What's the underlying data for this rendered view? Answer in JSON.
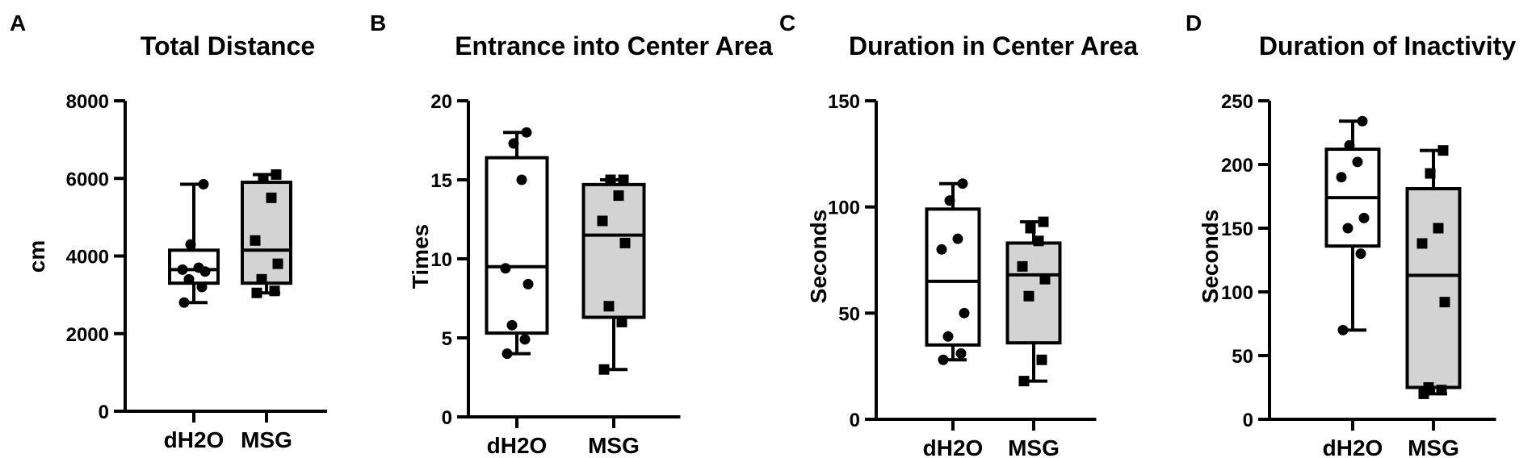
{
  "chart_data": [
    {
      "type": "box",
      "panel": "A",
      "title": "Total Distance",
      "ylabel": "cm",
      "ylim": [
        0,
        8000
      ],
      "yticks": [
        0,
        2000,
        4000,
        6000,
        8000
      ],
      "categories": [
        "dH2O",
        "MSG"
      ],
      "groups": [
        {
          "name": "dH2O",
          "marker": "circle",
          "fill": "#ffffff",
          "min": 2800,
          "q1": 3300,
          "median": 3650,
          "q3": 4150,
          "max": 5850,
          "points": [
            2800,
            3200,
            3400,
            3600,
            3650,
            3700,
            4300,
            5850
          ]
        },
        {
          "name": "MSG",
          "marker": "square",
          "fill": "#d3d3d3",
          "min": 3050,
          "q1": 3300,
          "median": 4150,
          "q3": 5900,
          "max": 6100,
          "points": [
            3050,
            3100,
            3400,
            3800,
            4400,
            5500,
            6000,
            6100
          ]
        }
      ]
    },
    {
      "type": "box",
      "panel": "B",
      "title": "Entrance into Center Area",
      "ylabel": "Times",
      "ylim": [
        0,
        20
      ],
      "yticks": [
        0,
        5,
        10,
        15,
        20
      ],
      "categories": [
        "dH2O",
        "MSG"
      ],
      "groups": [
        {
          "name": "dH2O",
          "marker": "circle",
          "fill": "#ffffff",
          "min": 4,
          "q1": 5.3,
          "median": 9.5,
          "q3": 16.4,
          "max": 18,
          "points": [
            4,
            4.9,
            5.8,
            8.4,
            9.4,
            15.0,
            17.3,
            18.0
          ]
        },
        {
          "name": "MSG",
          "marker": "square",
          "fill": "#d3d3d3",
          "min": 3,
          "q1": 6.3,
          "median": 11.5,
          "q3": 14.7,
          "max": 15,
          "points": [
            3,
            6.0,
            7.0,
            11.0,
            12.4,
            14.0,
            15.0,
            15.0
          ]
        }
      ]
    },
    {
      "type": "box",
      "panel": "C",
      "title": "Duration in Center Area",
      "ylabel": "Seconds",
      "ylim": [
        0,
        150
      ],
      "yticks": [
        0,
        50,
        100,
        150
      ],
      "categories": [
        "dH2O",
        "MSG"
      ],
      "groups": [
        {
          "name": "dH2O",
          "marker": "circle",
          "fill": "#ffffff",
          "min": 28,
          "q1": 35,
          "median": 65,
          "q3": 99,
          "max": 111,
          "points": [
            28,
            31,
            39,
            50,
            80,
            85,
            103,
            111
          ]
        },
        {
          "name": "MSG",
          "marker": "square",
          "fill": "#d3d3d3",
          "min": 18,
          "q1": 36,
          "median": 68,
          "q3": 83,
          "max": 93,
          "points": [
            18,
            28,
            58,
            66,
            72,
            84,
            90,
            93
          ]
        }
      ]
    },
    {
      "type": "box",
      "panel": "D",
      "title": "Duration of Inactivity",
      "ylabel": "Seconds",
      "ylim": [
        0,
        250
      ],
      "yticks": [
        0,
        50,
        100,
        150,
        200,
        250
      ],
      "categories": [
        "dH2O",
        "MSG"
      ],
      "groups": [
        {
          "name": "dH2O",
          "marker": "circle",
          "fill": "#ffffff",
          "min": 70,
          "q1": 136,
          "median": 174,
          "q3": 212,
          "max": 234,
          "points": [
            70,
            130,
            150,
            158,
            190,
            202,
            215,
            234
          ]
        },
        {
          "name": "MSG",
          "marker": "square",
          "fill": "#d3d3d3",
          "min": 20,
          "q1": 25,
          "median": 113,
          "q3": 181,
          "max": 211,
          "points": [
            20,
            23,
            25,
            92,
            138,
            150,
            193,
            211
          ]
        }
      ]
    }
  ]
}
